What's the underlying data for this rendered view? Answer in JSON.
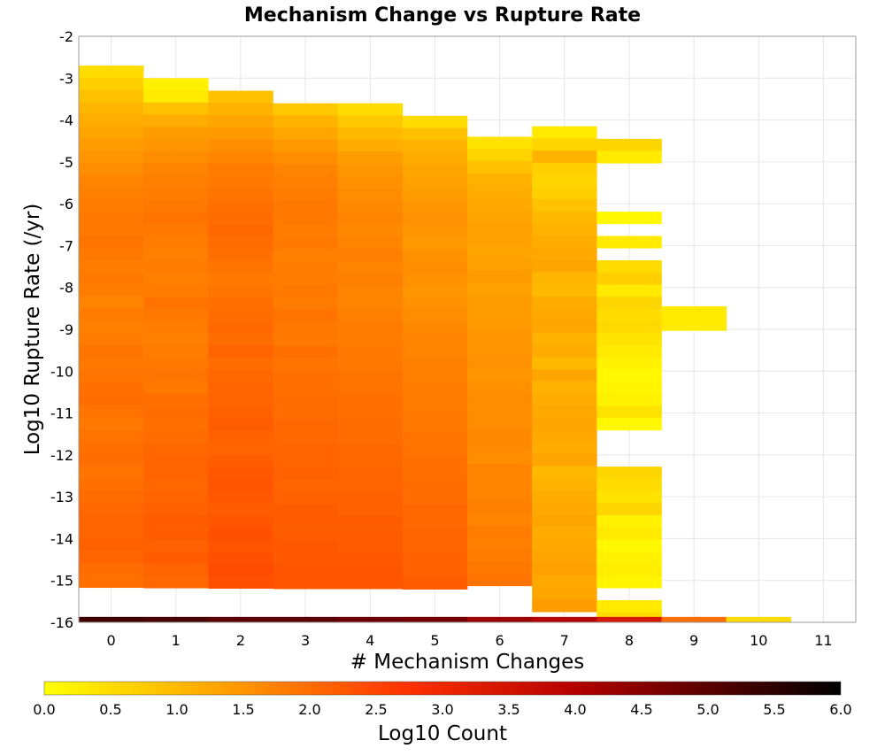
{
  "chart_data": {
    "type": "heatmap",
    "title": "Mechanism Change vs Rupture Rate",
    "xlabel": "# Mechanism Changes",
    "ylabel": "Log10 Rupture Rate (/yr)",
    "x_ticks": [
      "0",
      "1",
      "2",
      "3",
      "4",
      "5",
      "6",
      "7",
      "8",
      "9",
      "10",
      "11"
    ],
    "y_ticks": [
      "-2",
      "-3",
      "-4",
      "-5",
      "-6",
      "-7",
      "-8",
      "-9",
      "-10",
      "-11",
      "-12",
      "-13",
      "-14",
      "-15",
      "-16"
    ],
    "xlim": [
      -0.5,
      11.5
    ],
    "ylim": [
      -16,
      -2
    ],
    "y_bin_width": 0.29,
    "colorbar": {
      "label": "Log10 Count",
      "range": [
        0,
        6
      ],
      "ticks": [
        "0.0",
        "0.5",
        "1.0",
        "1.5",
        "2.0",
        "2.5",
        "3.0",
        "3.5",
        "4.0",
        "4.5",
        "5.0",
        "5.5",
        "6.0"
      ],
      "colors": [
        "#ffff00",
        "#ffa500",
        "#ff3300",
        "#b40000",
        "#000000"
      ],
      "color_stops": [
        0,
        1.3,
        2.7,
        4.0,
        6.0
      ]
    },
    "columns": [
      {
        "x": 0,
        "y_top": -2.7,
        "values": [
          0.5,
          0.7,
          0.9,
          1.05,
          1.2,
          1.3,
          1.4,
          1.5,
          1.6,
          1.7,
          1.75,
          1.8,
          1.85,
          1.85,
          1.9,
          1.85,
          1.8,
          1.85,
          1.8,
          1.7,
          1.8,
          1.75,
          1.8,
          1.9,
          1.85,
          1.9,
          1.95,
          2.0,
          1.9,
          1.85,
          1.9,
          1.95,
          2.0,
          1.9,
          1.95,
          2.0,
          2.05,
          2.1,
          2.1,
          2.15,
          2.1,
          2.0,
          1.95
        ]
      },
      {
        "x": 1,
        "y_top": -3.0,
        "values": [
          0.2,
          0.3,
          0.9,
          1.2,
          1.4,
          1.5,
          1.6,
          1.7,
          1.75,
          1.8,
          1.85,
          1.9,
          1.85,
          1.8,
          1.75,
          1.8,
          1.75,
          1.8,
          1.9,
          1.85,
          1.8,
          1.75,
          1.8,
          1.85,
          1.9,
          1.85,
          1.95,
          2.0,
          1.95,
          2.0,
          2.05,
          2.1,
          2.1,
          2.05,
          2.1,
          2.15,
          2.2,
          2.2,
          2.15,
          2.2,
          2.1,
          2.05
        ]
      },
      {
        "x": 2,
        "y_top": -3.3,
        "values": [
          0.9,
          1.1,
          1.3,
          1.45,
          1.6,
          1.7,
          1.8,
          1.85,
          1.9,
          1.95,
          2.0,
          2.05,
          2.0,
          1.95,
          1.9,
          1.85,
          1.9,
          1.95,
          2.0,
          2.05,
          2.0,
          2.1,
          2.0,
          2.05,
          2.1,
          2.1,
          2.15,
          2.2,
          2.15,
          2.1,
          2.2,
          2.25,
          2.3,
          2.25,
          2.2,
          2.3,
          2.35,
          2.3,
          2.35,
          2.4,
          2.35
        ]
      },
      {
        "x": 3,
        "y_top": -3.6,
        "values": [
          0.8,
          1.1,
          1.3,
          1.45,
          1.6,
          1.7,
          1.75,
          1.8,
          1.85,
          1.85,
          1.8,
          1.85,
          1.75,
          1.8,
          1.8,
          1.85,
          1.8,
          1.9,
          1.85,
          1.85,
          1.95,
          1.9,
          1.95,
          1.95,
          2.0,
          2.0,
          2.05,
          2.05,
          2.1,
          2.1,
          2.15,
          2.1,
          2.15,
          2.2,
          2.2,
          2.2,
          2.25,
          2.25,
          2.3,
          2.3
        ]
      },
      {
        "x": 4,
        "y_top": -3.6,
        "values": [
          0.5,
          0.8,
          1.0,
          1.2,
          1.4,
          1.5,
          1.55,
          1.6,
          1.65,
          1.7,
          1.65,
          1.7,
          1.75,
          1.7,
          1.75,
          1.7,
          1.7,
          1.75,
          1.8,
          1.8,
          1.85,
          1.85,
          1.9,
          1.9,
          1.95,
          1.95,
          2.0,
          2.0,
          2.05,
          2.05,
          2.1,
          2.1,
          2.15,
          2.15,
          2.2,
          2.2,
          2.2,
          2.25,
          2.3,
          2.3
        ]
      },
      {
        "x": 5,
        "y_top": -3.9,
        "values": [
          0.5,
          0.9,
          1.1,
          1.2,
          1.3,
          1.35,
          1.4,
          1.5,
          1.55,
          1.5,
          1.45,
          1.55,
          1.6,
          1.55,
          1.5,
          1.55,
          1.6,
          1.65,
          1.7,
          1.7,
          1.75,
          1.75,
          1.8,
          1.8,
          1.85,
          1.85,
          1.9,
          1.9,
          1.95,
          1.95,
          2.0,
          2.0,
          2.05,
          2.05,
          2.1,
          2.1,
          2.15,
          2.15,
          2.2
        ]
      },
      {
        "x": 6,
        "y_top": -4.4,
        "values": [
          0.4,
          0.6,
          0.9,
          1.1,
          1.2,
          1.25,
          1.3,
          1.35,
          1.35,
          1.3,
          1.35,
          1.4,
          1.35,
          1.4,
          1.4,
          1.45,
          1.5,
          1.5,
          1.55,
          1.5,
          1.55,
          1.6,
          1.6,
          1.6,
          1.65,
          1.65,
          1.6,
          1.7,
          1.7,
          1.7,
          1.75,
          1.7,
          1.8,
          1.75,
          1.8,
          1.85,
          1.9
        ]
      },
      {
        "x": 7,
        "y_top": -4.15,
        "values": [
          0.3,
          0.6,
          1.1,
          0.7,
          0.6,
          0.7,
          0.9,
          1.0,
          1.1,
          1.2,
          1.25,
          1.3,
          1.05,
          1.0,
          1.2,
          1.25,
          1.3,
          1.1,
          1.2,
          1.0,
          1.3,
          1.1,
          1.2,
          1.25,
          1.3,
          1.25,
          1.2,
          1.3,
          1.0,
          1.1,
          1.2,
          1.25,
          1.3,
          1.2,
          1.25,
          1.3,
          1.35,
          1.25,
          1.3,
          1.4
        ]
      },
      {
        "x": 8,
        "y_top": -4.45,
        "values": [
          0.6,
          0.3,
          null,
          null,
          null,
          null,
          0.1,
          null,
          0.3,
          null,
          0.5,
          0.7,
          0.3,
          0.6,
          0.5,
          0.55,
          0.4,
          0.3,
          0.2,
          0.1,
          0.15,
          0.2,
          0.4,
          0.1,
          null,
          null,
          null,
          0.6,
          0.5,
          0.4,
          0.6,
          0.2,
          0.3,
          0.1,
          0.2,
          0.25,
          0.15,
          null,
          0.3,
          0.5
        ]
      },
      {
        "x": 9,
        "y_top": -8.45,
        "values": [
          0.3,
          0.3
        ]
      },
      {
        "x": 10,
        "y_top": null,
        "values": []
      },
      {
        "x": 11,
        "y_top": null,
        "values": []
      }
    ],
    "bottom_row": {
      "y_top": -15.87,
      "values": [
        5.3,
        5.2,
        5.0,
        5.0,
        4.8,
        4.7,
        4.3,
        4.0,
        3.4,
        2.0,
        0.5,
        null
      ]
    },
    "grid": true,
    "legend": "colorbar-bottom"
  }
}
